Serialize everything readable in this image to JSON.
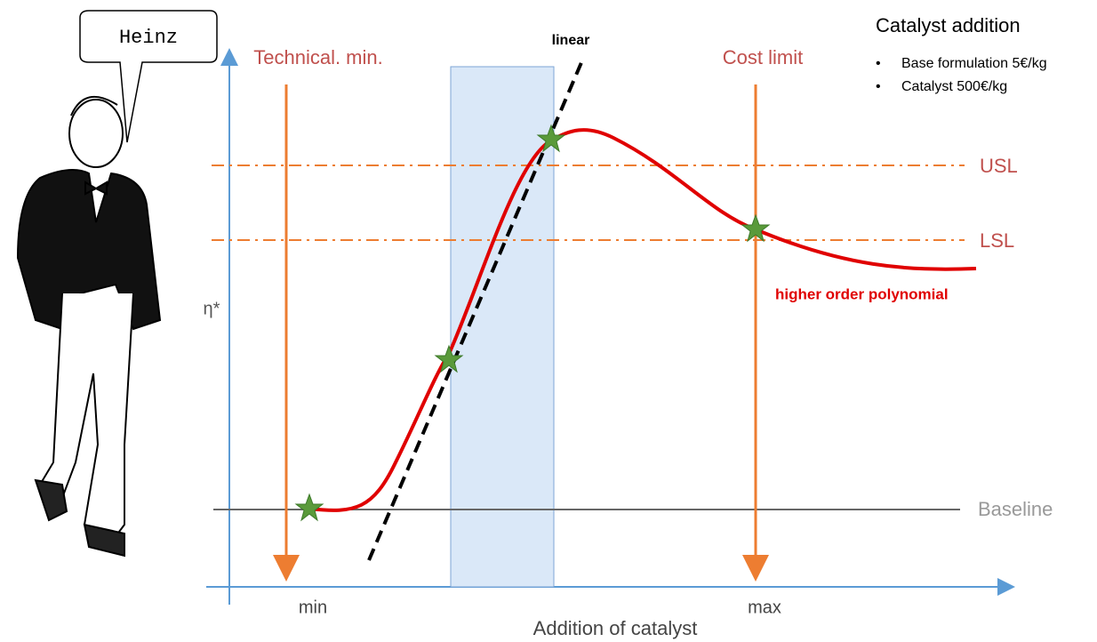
{
  "speech_bubble": "Heinz",
  "labels": {
    "technical_min": "Technical. min.",
    "linear": "linear",
    "cost_limit": "Cost limit",
    "usl": "USL",
    "lsl": "LSL",
    "polynomial": "higher order polynomial",
    "y_axis": "η*",
    "baseline": "Baseline",
    "min": "min",
    "max": "max",
    "x_axis": "Addition of catalyst"
  },
  "info": {
    "title": "Catalyst addition",
    "bullets": [
      "Base formulation 5€/kg",
      "Catalyst 500€/kg"
    ]
  }
}
